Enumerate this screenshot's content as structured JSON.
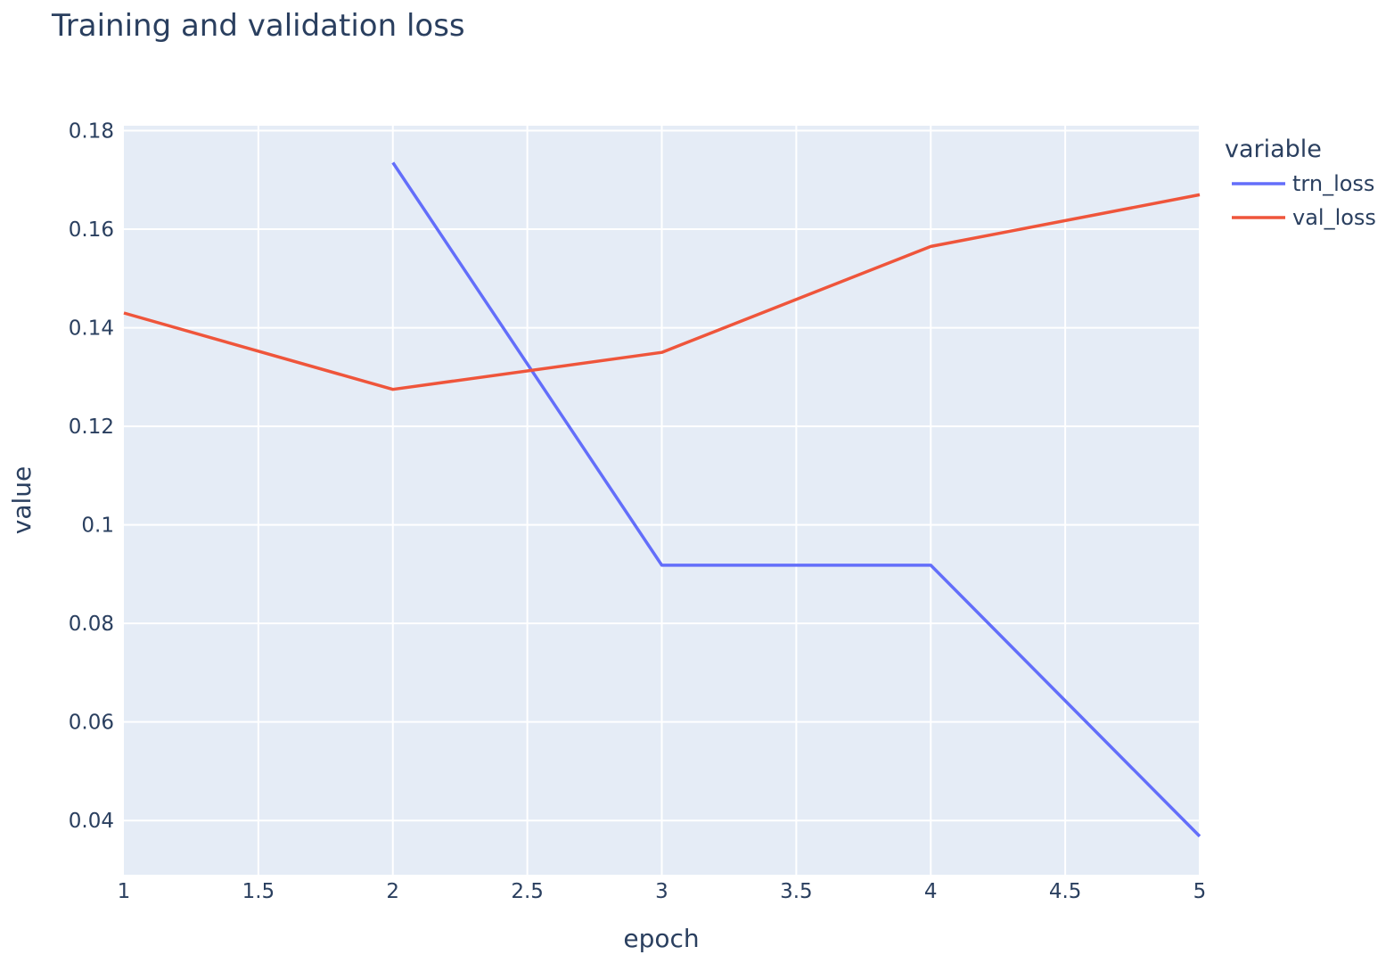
{
  "chart_data": {
    "type": "line",
    "title": "Training and validation loss",
    "xlabel": "epoch",
    "ylabel": "value",
    "xlim": [
      1,
      5
    ],
    "ylim": [
      0.029,
      0.181
    ],
    "x_ticks": [
      1,
      1.5,
      2,
      2.5,
      3,
      3.5,
      4,
      4.5,
      5
    ],
    "x_tick_labels": [
      "1",
      "1.5",
      "2",
      "2.5",
      "3",
      "3.5",
      "4",
      "4.5",
      "5"
    ],
    "y_ticks": [
      0.04,
      0.06,
      0.08,
      0.1,
      0.12,
      0.14,
      0.16,
      0.18
    ],
    "y_tick_labels": [
      "0.04",
      "0.06",
      "0.08",
      "0.1",
      "0.12",
      "0.14",
      "0.16",
      "0.18"
    ],
    "grid": true,
    "plot_background": "#e5ecf6",
    "legend": {
      "title": "variable",
      "placement": "top-right, outside plot"
    },
    "series": [
      {
        "name": "trn_loss",
        "color": "#636efa",
        "x": [
          2,
          3,
          4,
          5
        ],
        "y": [
          0.1735,
          0.0918,
          0.0918,
          0.0368
        ]
      },
      {
        "name": "val_loss",
        "color": "#ef553b",
        "x": [
          1,
          2,
          3,
          4,
          5
        ],
        "y": [
          0.143,
          0.1275,
          0.135,
          0.1565,
          0.167
        ]
      }
    ]
  }
}
